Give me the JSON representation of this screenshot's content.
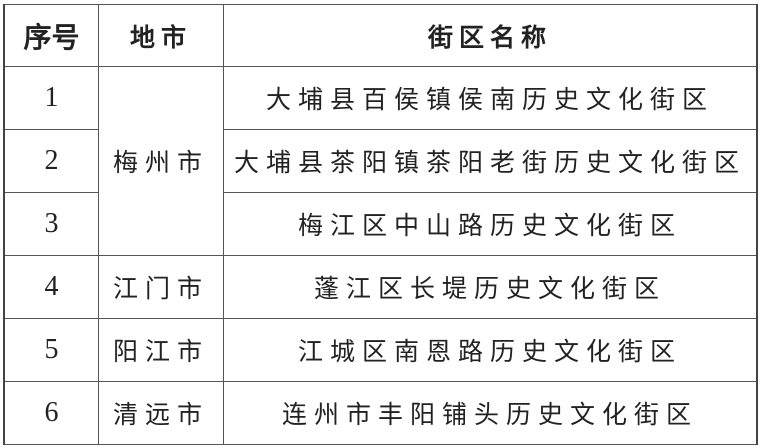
{
  "headers": {
    "index": "序号",
    "city": "地市",
    "name": "街区名称"
  },
  "rows": [
    {
      "index": "1",
      "city": "梅州市",
      "name": "大埔县百侯镇侯南历史文化街区"
    },
    {
      "index": "2",
      "city": "梅州市",
      "name": "大埔县茶阳镇茶阳老街历史文化街区"
    },
    {
      "index": "3",
      "city": "梅州市",
      "name": "梅江区中山路历史文化街区"
    },
    {
      "index": "4",
      "city": "江门市",
      "name": "蓬江区长堤历史文化街区"
    },
    {
      "index": "5",
      "city": "阳江市",
      "name": "江城区南恩路历史文化街区"
    },
    {
      "index": "6",
      "city": "清远市",
      "name": "连州市丰阳铺头历史文化街区"
    }
  ]
}
